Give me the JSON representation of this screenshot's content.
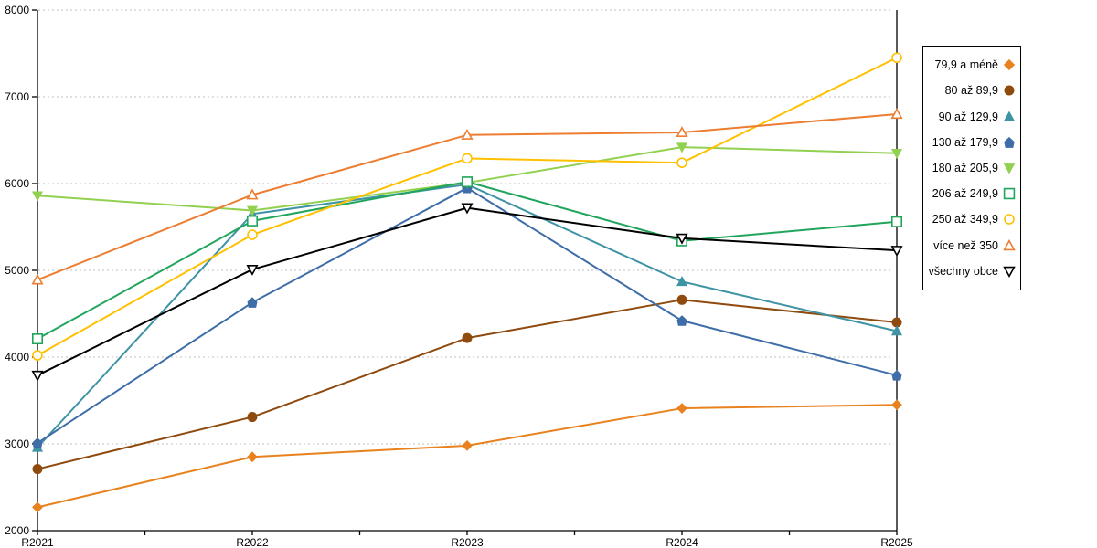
{
  "chart_data": {
    "type": "line",
    "title": "",
    "xlabel": "",
    "ylabel": "",
    "categories": [
      "R2021",
      "R2022",
      "R2023",
      "R2024",
      "R2025"
    ],
    "series": [
      {
        "name": "79,9 a méně",
        "color": "#E8821E",
        "marker": "diamond",
        "fill": "solid",
        "values": [
          2270,
          2850,
          2980,
          3410,
          3450
        ]
      },
      {
        "name": "80 až 89,9",
        "color": "#8F4A0E",
        "marker": "circle",
        "fill": "solid",
        "values": [
          2710,
          3310,
          4220,
          4660,
          4400
        ]
      },
      {
        "name": "90 až 129,9",
        "color": "#3E93A5",
        "marker": "triangle-up",
        "fill": "solid",
        "values": [
          2960,
          5650,
          5990,
          4870,
          4300
        ]
      },
      {
        "name": "130 až 179,9",
        "color": "#3E6DA8",
        "marker": "pentagon",
        "fill": "solid",
        "values": [
          3010,
          4630,
          5950,
          4420,
          3790
        ]
      },
      {
        "name": "180 až 205,9",
        "color": "#92D050",
        "marker": "triangle-down",
        "fill": "solid",
        "values": [
          5860,
          5690,
          6010,
          6420,
          6350
        ]
      },
      {
        "name": "206 až 249,9",
        "color": "#21A55C",
        "marker": "square",
        "fill": "hollow",
        "values": [
          4210,
          5570,
          6020,
          5340,
          5560
        ]
      },
      {
        "name": "250 až 349,9",
        "color": "#FFC000",
        "marker": "circle",
        "fill": "hollow",
        "values": [
          4020,
          5410,
          6290,
          6240,
          7450
        ]
      },
      {
        "name": "více než 350",
        "color": "#ED7D31",
        "marker": "triangle-up",
        "fill": "hollow",
        "values": [
          4890,
          5870,
          6560,
          6590,
          6800
        ]
      },
      {
        "name": "všechny obce",
        "color": "#000000",
        "marker": "triangle-down",
        "fill": "hollow",
        "values": [
          3790,
          5010,
          5720,
          5370,
          5230
        ]
      }
    ],
    "ylim": [
      2000,
      8000
    ],
    "y_ticks": [
      2000,
      3000,
      4000,
      5000,
      6000,
      7000,
      8000
    ],
    "grid": "horizontal-dotted",
    "legend_position": "right",
    "colors": {
      "background": "#FFFFFF",
      "axis": "#000000",
      "gridline": "#BFBFBF"
    }
  }
}
